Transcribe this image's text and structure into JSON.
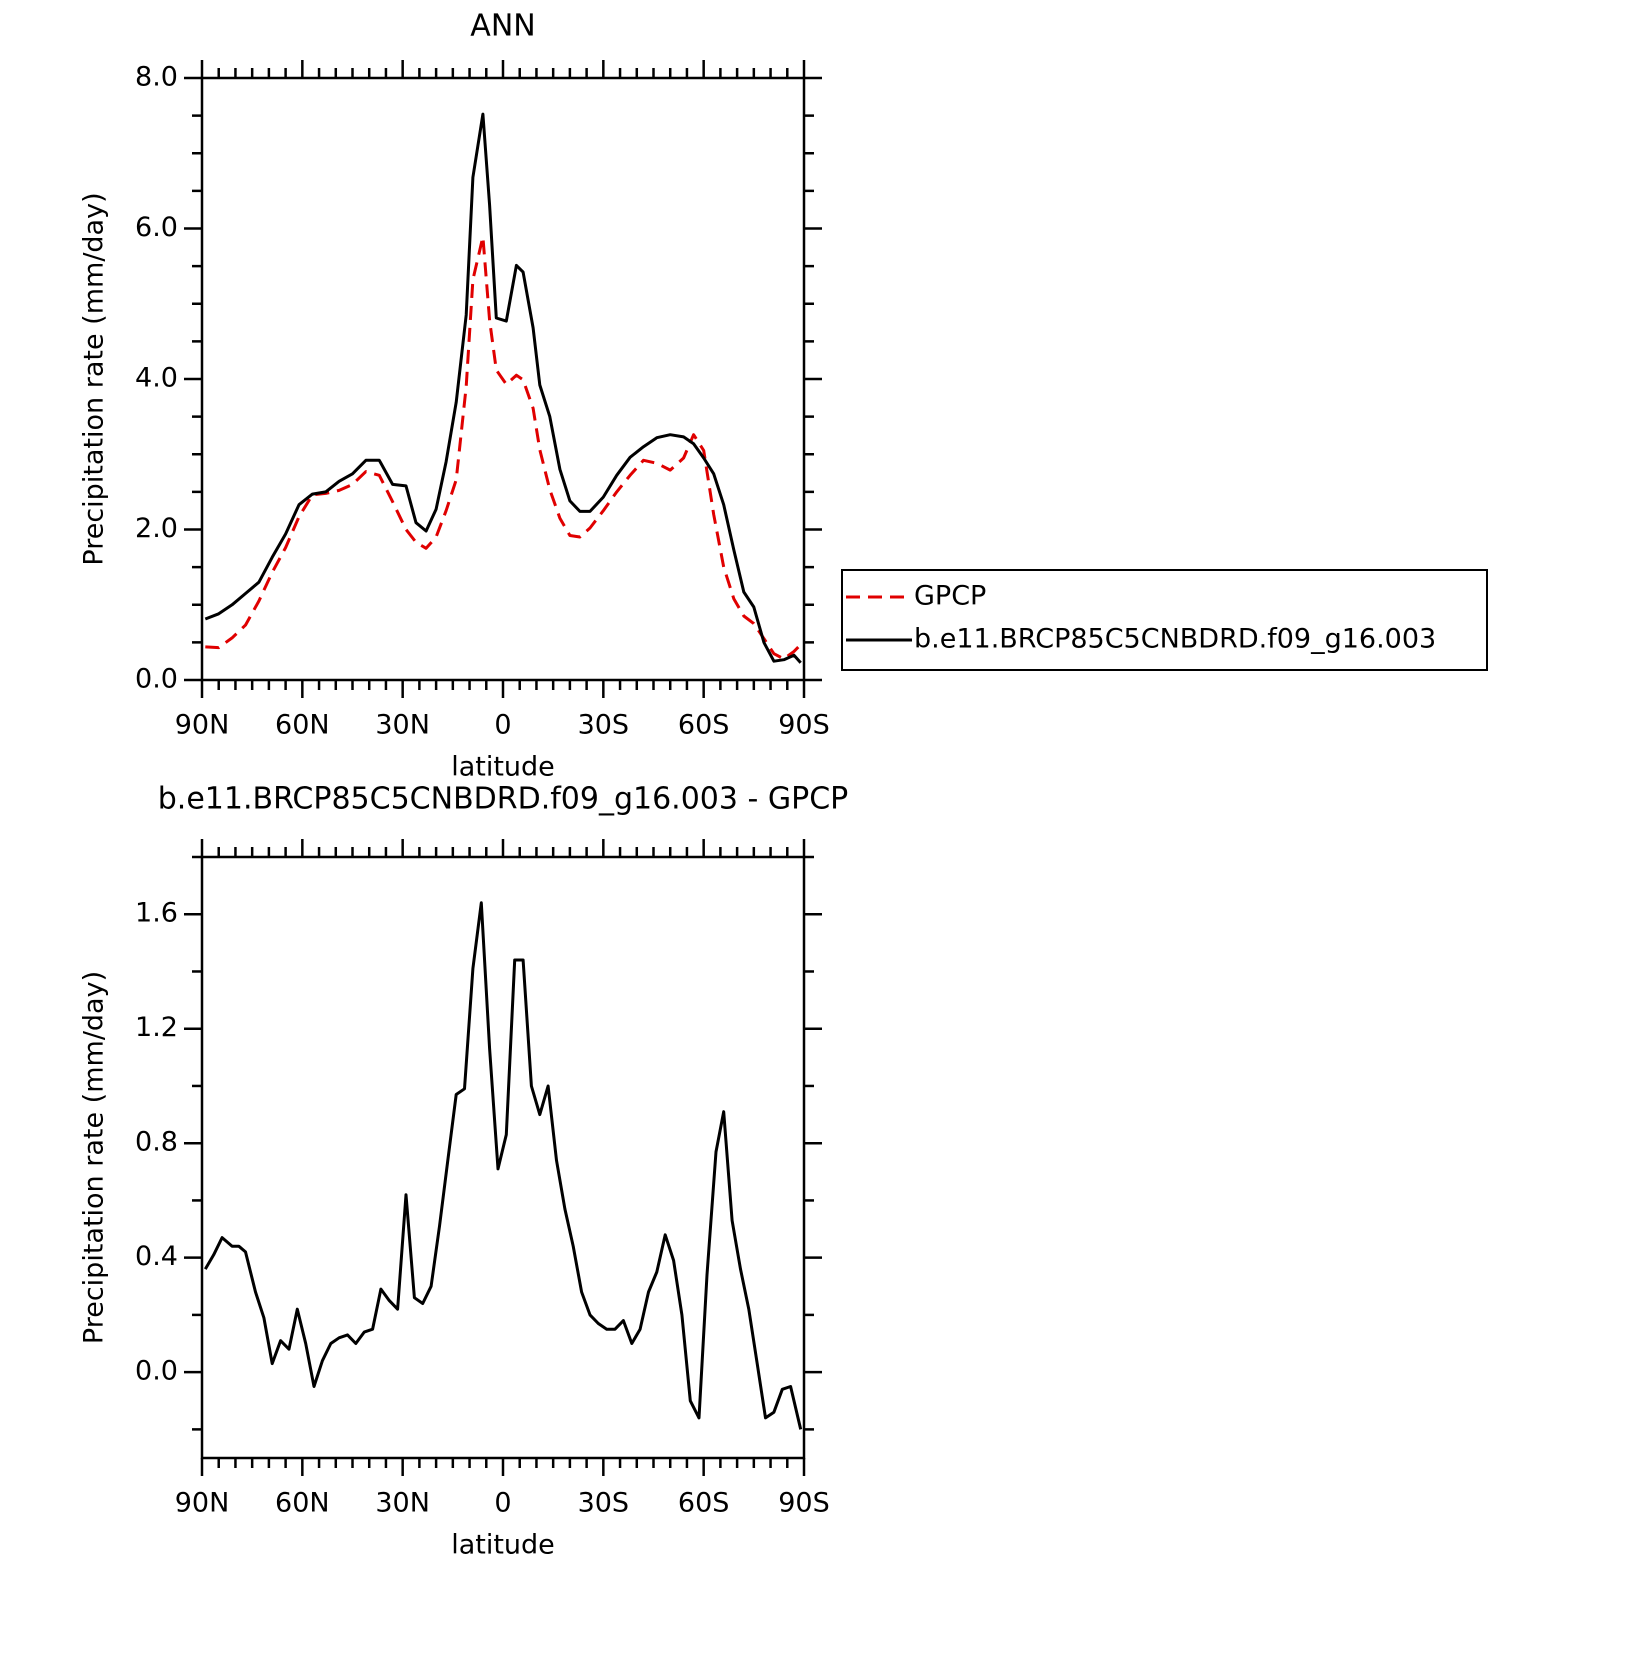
{
  "chart_data": [
    {
      "type": "line",
      "title": "ANN",
      "xlabel": "latitude",
      "ylabel": "Precipitation rate (mm/day)",
      "x": [
        89,
        85,
        81,
        77,
        73,
        69,
        65,
        61,
        57,
        53,
        49,
        45,
        41,
        37,
        33,
        29,
        26,
        23,
        20,
        17,
        14,
        11,
        9,
        6,
        4,
        2,
        -1,
        -4,
        -6,
        -9,
        -11,
        -14,
        -17,
        -20,
        -23,
        -26,
        -30,
        -34,
        -38,
        -42,
        -46,
        -50,
        -54,
        -57,
        -60,
        -63,
        -66,
        -69,
        -72,
        -75,
        -78,
        -81,
        -84,
        -87,
        -89
      ],
      "series": [
        {
          "name": "GPCP",
          "color": "#e00000",
          "dashed": true,
          "values": [
            0.44,
            0.43,
            0.56,
            0.73,
            1.05,
            1.43,
            1.76,
            2.17,
            2.46,
            2.48,
            2.52,
            2.6,
            2.77,
            2.72,
            2.37,
            2.0,
            1.83,
            1.75,
            1.9,
            2.25,
            2.66,
            3.9,
            5.32,
            5.89,
            4.78,
            4.12,
            3.93,
            4.05,
            3.99,
            3.61,
            3.06,
            2.53,
            2.15,
            1.92,
            1.9,
            2.02,
            2.25,
            2.5,
            2.72,
            2.92,
            2.88,
            2.79,
            2.95,
            3.26,
            3.05,
            2.2,
            1.5,
            1.08,
            0.85,
            0.75,
            0.55,
            0.35,
            0.28,
            0.38,
            0.47
          ]
        },
        {
          "name": "b.e11.BRCP85C5CNBDRD.f09_g16.003",
          "color": "#000000",
          "dashed": false,
          "values": [
            0.81,
            0.88,
            1.0,
            1.15,
            1.3,
            1.63,
            1.94,
            2.33,
            2.47,
            2.5,
            2.64,
            2.74,
            2.92,
            2.92,
            2.6,
            2.58,
            2.09,
            1.98,
            2.27,
            2.9,
            3.69,
            4.85,
            6.68,
            7.52,
            6.31,
            4.81,
            4.77,
            5.51,
            5.42,
            4.68,
            3.92,
            3.5,
            2.8,
            2.38,
            2.24,
            2.24,
            2.43,
            2.72,
            2.96,
            3.1,
            3.22,
            3.26,
            3.23,
            3.14,
            2.95,
            2.74,
            2.33,
            1.73,
            1.17,
            0.97,
            0.5,
            0.25,
            0.27,
            0.33,
            0.23
          ]
        }
      ],
      "xlim": [
        90,
        -90
      ],
      "xticks": [
        {
          "value": 90,
          "label": "90N"
        },
        {
          "value": 60,
          "label": "60N"
        },
        {
          "value": 30,
          "label": "30N"
        },
        0,
        {
          "value": -30,
          "label": "30S"
        },
        {
          "value": -60,
          "label": "60S"
        },
        {
          "value": -90,
          "label": "90S"
        }
      ],
      "ylim": [
        0,
        8
      ],
      "yticks": [
        {
          "value": 0,
          "label": "0.0"
        },
        {
          "value": 2,
          "label": "2.0"
        },
        {
          "value": 4,
          "label": "4.0"
        },
        {
          "value": 6,
          "label": "6.0"
        },
        {
          "value": 8,
          "label": "8.0"
        }
      ],
      "legend": "outside-right"
    },
    {
      "type": "line",
      "title": "b.e11.BRCP85C5CNBDRD.f09_g16.003 - GPCP",
      "xlabel": "latitude",
      "ylabel": "Precipitation rate (mm/day)",
      "x": [
        89,
        86.5,
        84,
        81,
        79,
        77,
        74,
        71.5,
        69,
        66.5,
        64,
        61.5,
        59,
        56.5,
        54,
        51.5,
        49,
        46.5,
        44,
        41.5,
        39,
        36.5,
        34,
        31.5,
        29,
        26.5,
        24,
        21.5,
        19,
        16.5,
        14,
        11.5,
        9,
        6.5,
        4,
        1.5,
        -1,
        -3.5,
        -6,
        -8.5,
        -11,
        -13.5,
        -16,
        -18.5,
        -21,
        -23.5,
        -26,
        -28.5,
        -31,
        -33.5,
        -36,
        -38.5,
        -41,
        -43.5,
        -46,
        -48.5,
        -51,
        -53.5,
        -56,
        -58.6,
        -61,
        -63.7,
        -66,
        -68.5,
        -71,
        -73.5,
        -76,
        -78.5,
        -81,
        -83.5,
        -86,
        -89
      ],
      "values": [
        0.36,
        0.41,
        0.47,
        0.44,
        0.44,
        0.42,
        0.28,
        0.19,
        0.03,
        0.11,
        0.08,
        0.22,
        0.1,
        -0.05,
        0.04,
        0.1,
        0.12,
        0.13,
        0.1,
        0.14,
        0.15,
        0.29,
        0.25,
        0.22,
        0.62,
        0.26,
        0.24,
        0.3,
        0.51,
        0.74,
        0.97,
        0.99,
        1.41,
        1.64,
        1.13,
        0.71,
        0.83,
        1.44,
        1.44,
        1.0,
        0.9,
        1.0,
        0.74,
        0.57,
        0.44,
        0.28,
        0.2,
        0.17,
        0.15,
        0.15,
        0.18,
        0.1,
        0.15,
        0.28,
        0.35,
        0.48,
        0.39,
        0.2,
        -0.1,
        -0.16,
        0.34,
        0.77,
        0.91,
        0.53,
        0.36,
        0.22,
        0.03,
        -0.16,
        -0.14,
        -0.06,
        -0.05,
        -0.2
      ],
      "color": "#000000",
      "xlim": [
        90,
        -90
      ],
      "xticks": [
        {
          "value": 90,
          "label": "90N"
        },
        {
          "value": 60,
          "label": "60N"
        },
        {
          "value": 30,
          "label": "30N"
        },
        0,
        {
          "value": -30,
          "label": "30S"
        },
        {
          "value": -60,
          "label": "60S"
        },
        {
          "value": -90,
          "label": "90S"
        }
      ],
      "ylim": [
        -0.3,
        1.8
      ],
      "yticks": [
        {
          "value": 0,
          "label": "0.0"
        },
        0.4,
        0.8,
        1.2,
        1.6
      ]
    }
  ]
}
